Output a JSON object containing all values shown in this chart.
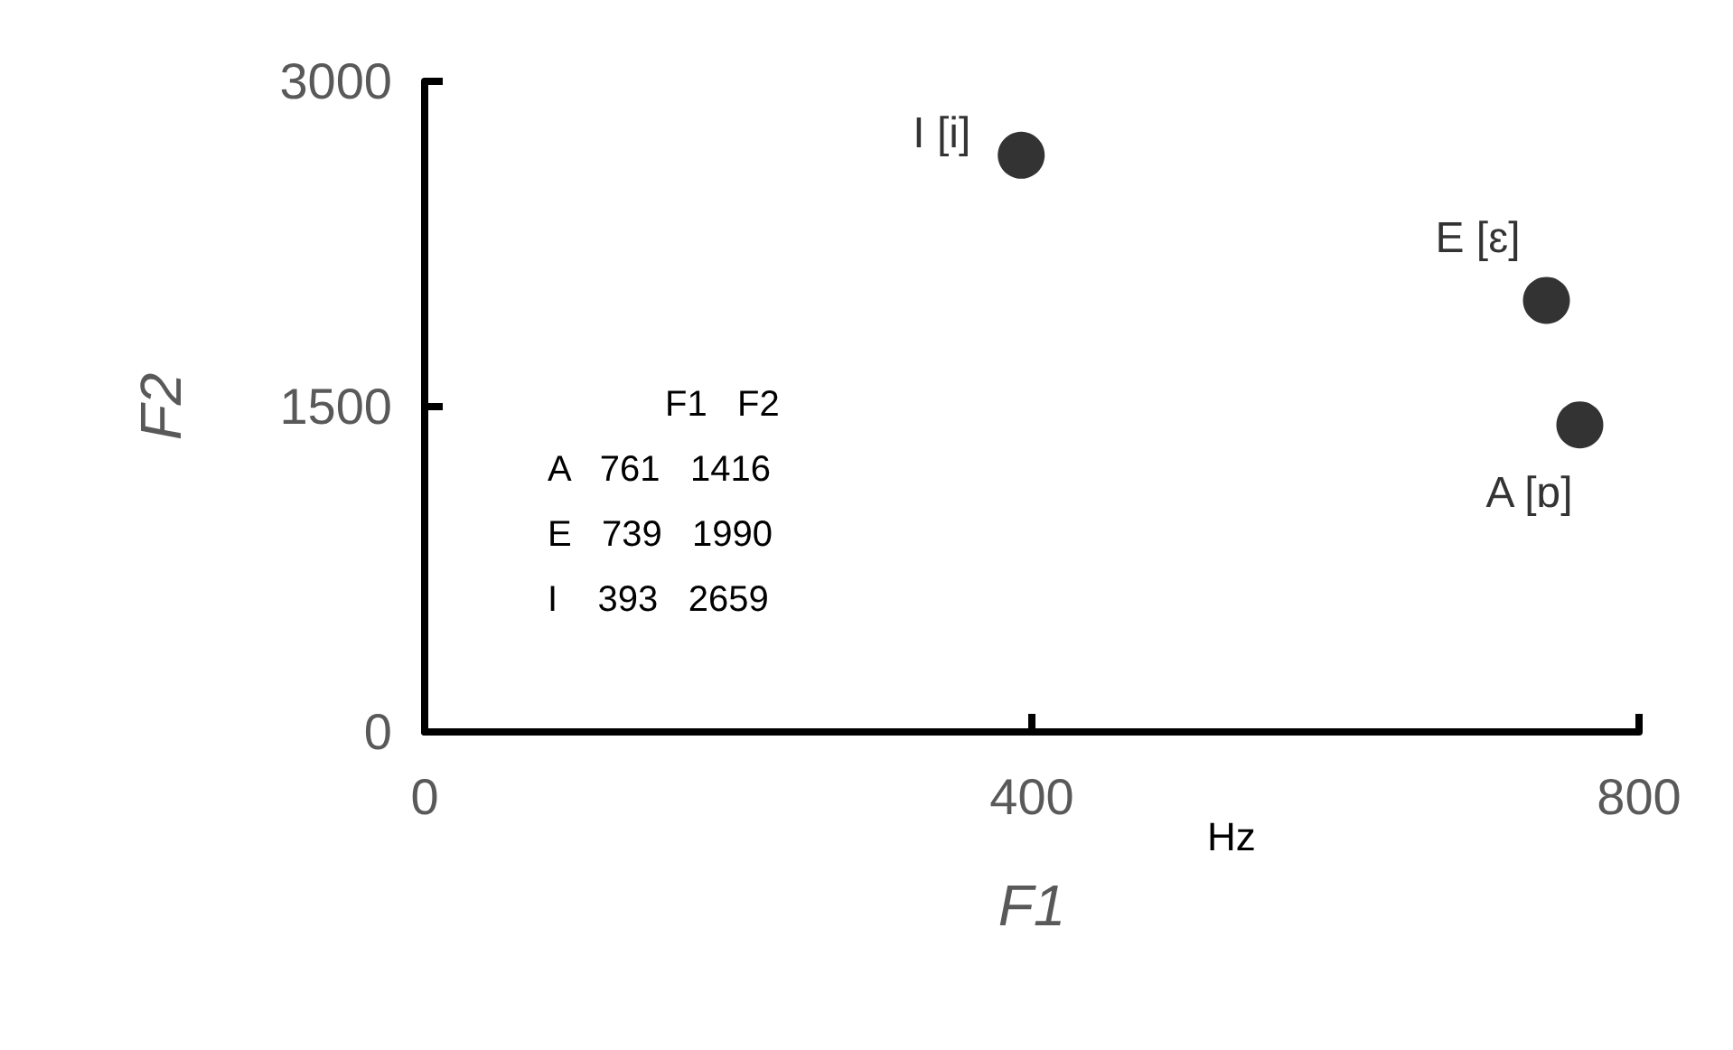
{
  "chart_data": {
    "type": "scatter",
    "xlabel": "F1",
    "ylabel": "F2",
    "series": [
      {
        "name": "A [ɒ]",
        "color": "#000000",
        "x": [
          761
        ],
        "values": [
          1416
        ]
      },
      {
        "name": "E [ɛ]",
        "color": "#000000",
        "x": [
          739
        ],
        "values": [
          1990
        ]
      },
      {
        "name": "I [i]",
        "color": "#000000",
        "x": [
          393
        ],
        "values": [
          2659
        ]
      }
    ],
    "xlim": [
      0,
      800
    ],
    "xticks": [
      0,
      400,
      800
    ],
    "ylim": [
      0,
      3000
    ],
    "yticks": [
      0,
      1500,
      3000
    ],
    "annotations": [
      "Hz",
      "F1   F2",
      "A   761   1416",
      "E   739   1990",
      "I    393   2659"
    ],
    "grid": false,
    "legend": false,
    "marker": "circle"
  }
}
